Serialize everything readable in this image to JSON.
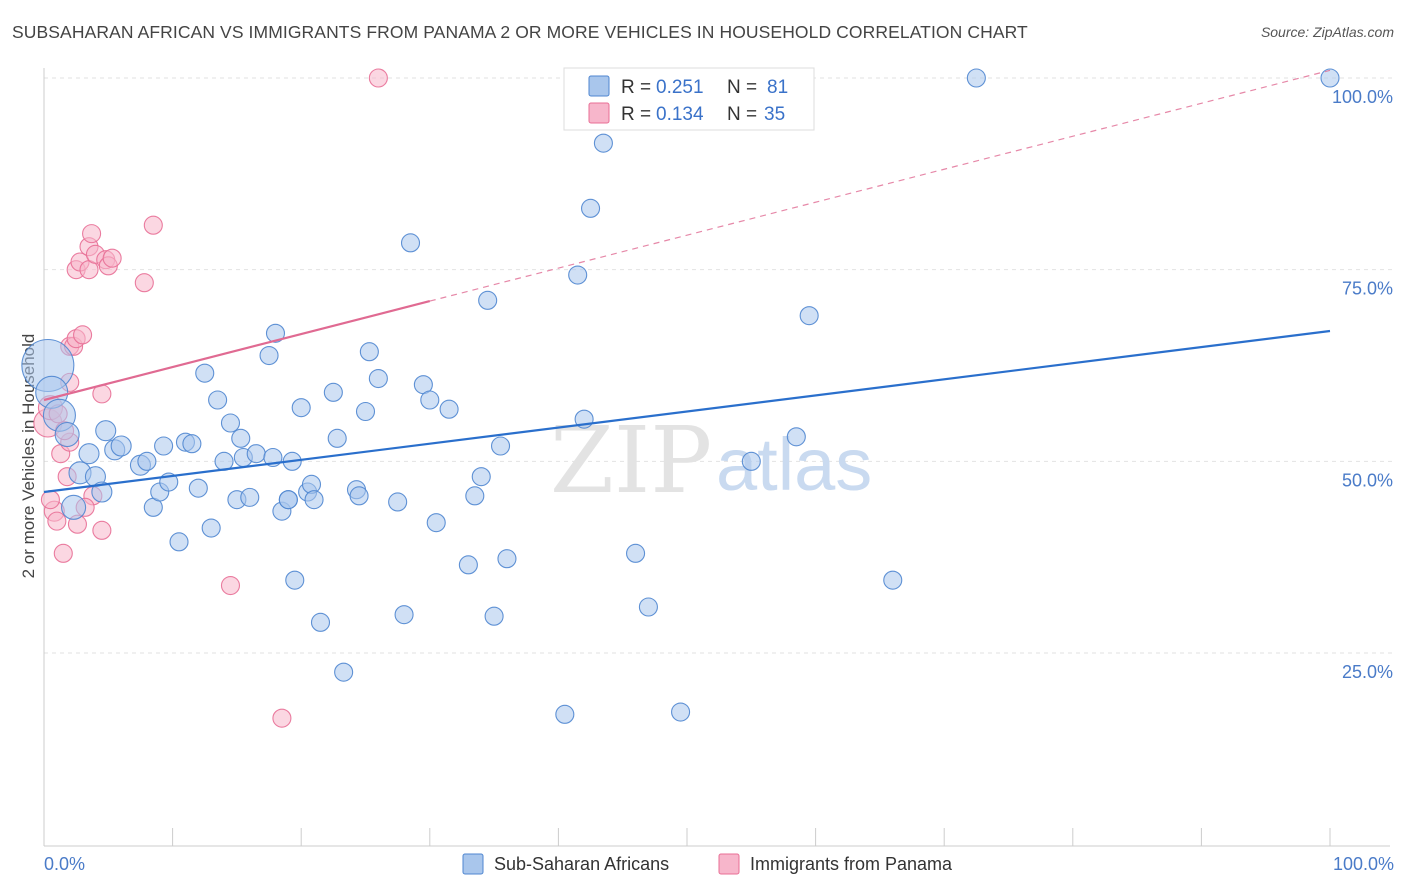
{
  "title": "SUBSAHARAN AFRICAN VS IMMIGRANTS FROM PANAMA 2 OR MORE VEHICLES IN HOUSEHOLD CORRELATION CHART",
  "source": "Source: ZipAtlas.com",
  "watermark": {
    "zip": "ZIP",
    "atlas": "atlas"
  },
  "colors": {
    "blue_fill": "#a9c6ec",
    "blue_stroke": "#4f86d0",
    "blue_line": "#2a6fcc",
    "pink_fill": "#f7b6cb",
    "pink_stroke": "#e86f96",
    "pink_line": "#e06a92"
  },
  "legend": {
    "series1": {
      "r_label": "R =",
      "r_value": "0.251",
      "n_label": "N =",
      "n_value": "81"
    },
    "series2": {
      "r_label": "R =",
      "r_value": "0.134",
      "n_label": "N =",
      "n_value": "35"
    }
  },
  "chart_data": {
    "type": "scatter",
    "title": "SUBSAHARAN AFRICAN VS IMMIGRANTS FROM PANAMA 2 OR MORE VEHICLES IN HOUSEHOLD CORRELATION CHART",
    "xlabel": "",
    "ylabel": "2 or more Vehicles in Household",
    "xlim": [
      0,
      100
    ],
    "ylim": [
      0,
      104
    ],
    "x_tick_labels": {
      "left": "0.0%",
      "right": "100.0%"
    },
    "y_ticks": [
      {
        "value": 25,
        "label": "25.0%"
      },
      {
        "value": 50,
        "label": "50.0%"
      },
      {
        "value": 75,
        "label": "75.0%"
      },
      {
        "value": 100,
        "label": "100.0%"
      }
    ],
    "grid": true,
    "legend_position": "top-center",
    "series": [
      {
        "name": "Sub-Saharan Africans",
        "color": "#a9c6ec",
        "trend": {
          "x0": 0,
          "y0": 46.0,
          "x1": 100,
          "y1": 67.0,
          "style": "solid"
        },
        "points": [
          [
            0.3,
            62.5,
            26
          ],
          [
            0.6,
            59,
            16
          ],
          [
            1.2,
            56,
            16
          ],
          [
            1.8,
            53.5,
            12
          ],
          [
            2.3,
            44,
            12
          ],
          [
            2.8,
            48.5,
            11
          ],
          [
            3.5,
            51,
            10
          ],
          [
            4,
            48,
            10
          ],
          [
            4.5,
            46,
            10
          ],
          [
            4.8,
            54,
            10
          ],
          [
            5.5,
            51.5,
            10
          ],
          [
            6,
            52,
            10
          ],
          [
            7.5,
            49.5,
            10
          ],
          [
            8,
            50,
            9
          ],
          [
            8.5,
            44,
            9
          ],
          [
            9,
            46,
            9
          ],
          [
            9.3,
            52,
            9
          ],
          [
            9.7,
            47.3,
            9
          ],
          [
            10.5,
            39.5,
            9
          ],
          [
            11,
            52.5,
            9
          ],
          [
            11.5,
            52.3,
            9
          ],
          [
            12,
            46.5,
            9
          ],
          [
            12.5,
            61.5,
            9
          ],
          [
            13,
            41.3,
            9
          ],
          [
            13.5,
            58,
            9
          ],
          [
            14,
            50,
            9
          ],
          [
            14.5,
            55,
            9
          ],
          [
            15,
            45,
            9
          ],
          [
            15.3,
            53,
            9
          ],
          [
            15.5,
            50.5,
            9
          ],
          [
            16,
            45.3,
            9
          ],
          [
            16.5,
            51,
            9
          ],
          [
            17.5,
            63.8,
            9
          ],
          [
            17.8,
            50.5,
            9
          ],
          [
            18,
            66.7,
            9
          ],
          [
            18.5,
            43.5,
            9
          ],
          [
            19,
            45,
            9
          ],
          [
            19.3,
            50,
            9
          ],
          [
            19.5,
            34.5,
            9
          ],
          [
            20,
            57,
            9
          ],
          [
            20.5,
            46,
            9
          ],
          [
            20.8,
            47,
            9
          ],
          [
            21.5,
            29,
            9
          ],
          [
            22.5,
            59,
            9
          ],
          [
            22.8,
            53,
            9
          ],
          [
            23.3,
            22.5,
            9
          ],
          [
            24.3,
            46.3,
            9
          ],
          [
            24.5,
            45.5,
            9
          ],
          [
            25,
            56.5,
            9
          ],
          [
            25.3,
            64.3,
            9
          ],
          [
            26,
            60.8,
            9
          ],
          [
            27.5,
            44.7,
            9
          ],
          [
            28,
            30,
            9
          ],
          [
            28.5,
            78.5,
            9
          ],
          [
            29.5,
            60,
            9
          ],
          [
            30,
            58,
            9
          ],
          [
            30.5,
            42,
            9
          ],
          [
            31.5,
            56.8,
            9
          ],
          [
            33,
            36.5,
            9
          ],
          [
            33.5,
            45.5,
            9
          ],
          [
            34,
            48,
            9
          ],
          [
            34.5,
            71,
            9
          ],
          [
            35,
            29.8,
            9
          ],
          [
            35.5,
            52,
            9
          ],
          [
            36,
            37.3,
            9
          ],
          [
            40.5,
            17,
            9
          ],
          [
            41.5,
            74.3,
            9
          ],
          [
            42,
            55.5,
            9
          ],
          [
            42.5,
            83,
            9
          ],
          [
            43.5,
            91.5,
            9
          ],
          [
            46,
            38,
            9
          ],
          [
            47,
            31,
            9
          ],
          [
            49.5,
            17.3,
            9
          ],
          [
            55,
            50,
            9
          ],
          [
            58.5,
            53.2,
            9
          ],
          [
            59.5,
            69,
            9
          ],
          [
            66,
            34.5,
            9
          ],
          [
            72.5,
            100,
            9
          ],
          [
            100,
            100,
            9
          ],
          [
            19,
            45,
            9
          ],
          [
            21,
            45,
            9
          ]
        ]
      },
      {
        "name": "Immigrants from Panama",
        "color": "#f7b6cb",
        "trend": {
          "x0": 0,
          "y0": 58.0,
          "x1": 100,
          "y1": 101.0,
          "solid_until_x": 30,
          "style": "solid-then-dashed"
        },
        "points": [
          [
            0.3,
            55,
            14
          ],
          [
            0.5,
            57,
            12
          ],
          [
            0.8,
            43.5,
            10
          ],
          [
            1,
            42.2,
            9
          ],
          [
            1.3,
            51,
            9
          ],
          [
            1.5,
            38,
            9
          ],
          [
            1.8,
            48,
            9
          ],
          [
            2,
            52.5,
            9
          ],
          [
            2,
            65,
            9
          ],
          [
            2,
            60.3,
            9
          ],
          [
            2.3,
            65,
            9
          ],
          [
            2.5,
            75,
            9
          ],
          [
            2.5,
            66,
            9
          ],
          [
            2.8,
            76,
            9
          ],
          [
            3,
            66.5,
            9
          ],
          [
            2.6,
            41.8,
            9
          ],
          [
            3.5,
            75,
            9
          ],
          [
            3.5,
            78,
            9
          ],
          [
            3.7,
            79.7,
            9
          ],
          [
            3.8,
            45.5,
            9
          ],
          [
            4,
            77,
            9
          ],
          [
            4.5,
            41,
            9
          ],
          [
            4.8,
            76.3,
            9
          ],
          [
            4.5,
            58.8,
            9
          ],
          [
            5,
            75.5,
            9
          ],
          [
            5.3,
            76.5,
            9
          ],
          [
            7.8,
            73.3,
            9
          ],
          [
            8.5,
            80.8,
            9
          ],
          [
            14.5,
            33.8,
            9
          ],
          [
            18.5,
            16.5,
            9
          ],
          [
            26,
            100,
            9
          ],
          [
            1.1,
            56.2,
            9
          ],
          [
            0.5,
            45,
            9
          ],
          [
            1.6,
            54,
            9
          ],
          [
            3.2,
            44,
            9
          ]
        ]
      }
    ]
  },
  "bottom_legend": {
    "series1": "Sub-Saharan Africans",
    "series2": "Immigrants from Panama"
  }
}
